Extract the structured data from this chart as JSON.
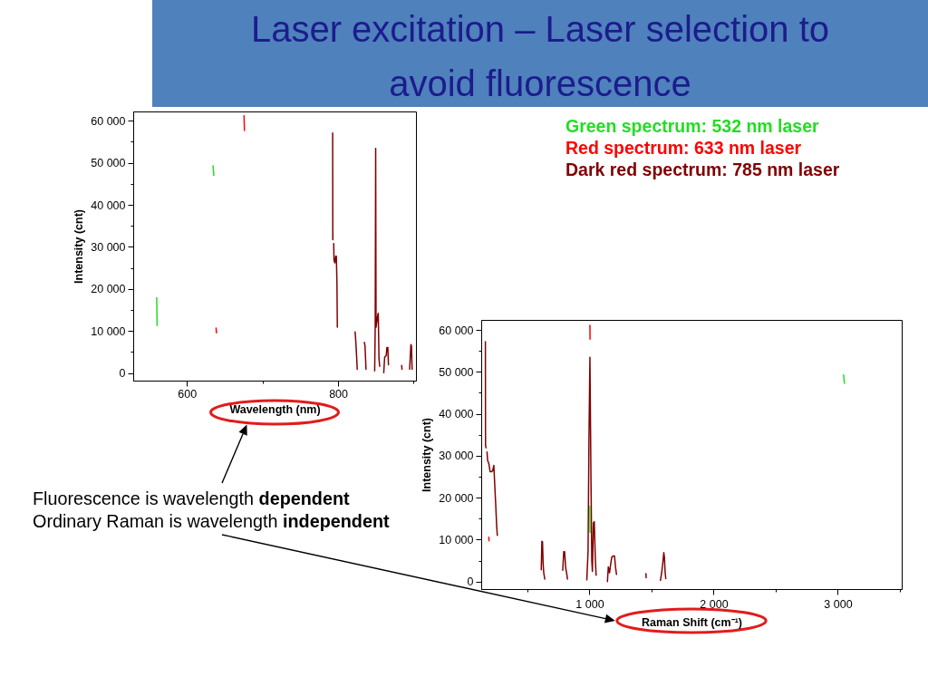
{
  "chart_data": [
    {
      "type": "line",
      "title": "Laser excitation – Laser selection to avoid fluorescence",
      "xlabel": "Wavelength (nm)",
      "ylabel": "Intensity (cnt)",
      "xlim": [
        529,
        903
      ],
      "xticks": [
        600,
        {
          "value": 700,
          "label": null
        },
        800,
        {
          "value": 900,
          "label": null
        }
      ],
      "ylim": [
        -1800,
        62200
      ],
      "yticks": [
        0,
        {
          "value": 5000,
          "label": null
        },
        {
          "value": 10000,
          "label": "10 000"
        },
        {
          "value": 15000,
          "label": null
        },
        {
          "value": 20000,
          "label": "20 000"
        },
        {
          "value": 25000,
          "label": null
        },
        {
          "value": 30000,
          "label": "30 000"
        },
        {
          "value": 35000,
          "label": null
        },
        {
          "value": 40000,
          "label": "40 000"
        },
        {
          "value": 45000,
          "label": null
        },
        {
          "value": 50000,
          "label": "50 000"
        },
        {
          "value": 55000,
          "label": null
        },
        {
          "value": 60000,
          "label": "60 000"
        }
      ],
      "legend": "right",
      "annotations": [
        "Fluorescence is wavelength dependent"
      ],
      "series": [
        {
          "name": "Green spectrum: 532 nm laser",
          "color": "#22dd22",
          "x": [
            559.5,
            560,
            597,
            634,
            635
          ],
          "values": [
            18000,
            11400,
            null,
            49400,
            47100
          ]
        },
        {
          "name": "Red spectrum: 633 nm laser",
          "color": "#ff0000",
          "x": [
            638,
            638.5,
            656,
            675,
            675.5
          ],
          "values": [
            10800,
            9700,
            null,
            61300,
            57800
          ]
        },
        {
          "name": "Dark red spectrum: 785 nm laser",
          "color": "#800000",
          "x": [
            792.2,
            792.4,
            793.0,
            793.6,
            794.0,
            795.1,
            796.2,
            797.1,
            797.9,
            798.4,
            810,
            821.9,
            822.7,
            823.9,
            824.7,
            829,
            834.2,
            835.0,
            835.9,
            836.3,
            842,
            847.8,
            848.5,
            849.1,
            849.6,
            851.5,
            852.5,
            853.5,
            854.4,
            857,
            859.8,
            861.0,
            863.1,
            863.9,
            865.2,
            866.0,
            875,
            883.5,
            883.9,
            889,
            894.0,
            895.7,
            896.5,
            897.3
          ],
          "values": [
            57200,
            31800,
            null,
            30900,
            26900,
            26300,
            27900,
            27900,
            21400,
            11000,
            null,
            9900,
            8000,
            4000,
            1000,
            null,
            7400,
            6500,
            2800,
            1000,
            null,
            600,
            11000,
            53500,
            11000,
            13500,
            14300,
            3500,
            1700,
            null,
            200,
            3900,
            4300,
            6200,
            6200,
            2100,
            null,
            1900,
            1000,
            null,
            1000,
            6900,
            6500,
            1000
          ]
        }
      ]
    },
    {
      "type": "line",
      "xlabel": "Raman Shift (cm⁻¹)",
      "ylabel": "Intensity (cnt)",
      "xlim": [
        128,
        3515
      ],
      "xticks": [
        {
          "value": 500,
          "label": null
        },
        {
          "value": 1000,
          "label": "1 000"
        },
        {
          "value": 1500,
          "label": null
        },
        {
          "value": 2000,
          "label": "2 000"
        },
        {
          "value": 2500,
          "label": null
        },
        {
          "value": 3000,
          "label": "3 000"
        },
        {
          "value": 3500,
          "label": null
        }
      ],
      "ylim": [
        -1800,
        62400
      ],
      "yticks": [
        0,
        {
          "value": 5000,
          "label": null
        },
        {
          "value": 10000,
          "label": "10 000"
        },
        {
          "value": 15000,
          "label": null
        },
        {
          "value": 20000,
          "label": "20 000"
        },
        {
          "value": 25000,
          "label": null
        },
        {
          "value": 30000,
          "label": "30 000"
        },
        {
          "value": 35000,
          "label": null
        },
        {
          "value": 40000,
          "label": "40 000"
        },
        {
          "value": 45000,
          "label": null
        },
        {
          "value": 50000,
          "label": "50 000"
        },
        {
          "value": 55000,
          "label": null
        },
        {
          "value": 60000,
          "label": "60 000"
        }
      ],
      "annotations": [
        "Ordinary Raman is wavelength independent"
      ],
      "series": [
        {
          "color": "#22dd22",
          "x": [
            1000,
            1001,
            2020,
            3043,
            3050
          ],
          "values": [
            18100,
            11800,
            null,
            49400,
            47400
          ]
        },
        {
          "color": "#ff0000",
          "x": [
            186,
            187,
            593,
            1000,
            1001
          ],
          "values": [
            10700,
            9800,
            null,
            61200,
            57900
          ]
        },
        {
          "color": "#800000",
          "x": [
            158,
            159,
            163,
            166,
            171,
            176,
            186,
            196,
            206,
            216,
            226,
            232,
            241,
            249,
            254,
            430,
            608,
            613,
            618,
            623,
            628,
            636,
            710,
            781,
            789,
            796,
            804,
            814,
            819,
            897,
            975,
            985,
            992,
            1000,
            1008,
            1015,
            1020,
            1028,
            1035,
            1043,
            1050,
            1095,
            1141,
            1148,
            1158,
            1166,
            1176,
            1186,
            1198,
            1206,
            1214,
            1333,
            1451,
            1453,
            1510,
            1568,
            1578,
            1588,
            1595,
            1600,
            1606,
            1611
          ],
          "values": [
            57300,
            32600,
            32000,
            null,
            31000,
            29000,
            28200,
            26300,
            26300,
            26500,
            27800,
            24000,
            18500,
            13300,
            11100,
            null,
            2900,
            9700,
            9600,
            4400,
            2200,
            700,
            null,
            2800,
            7200,
            7200,
            3600,
            1800,
            700,
            null,
            500,
            7400,
            33400,
            53600,
            25900,
            5100,
            2500,
            14100,
            14400,
            5900,
            1600,
            null,
            100,
            3600,
            2200,
            4000,
            5900,
            6200,
            6200,
            3600,
            1800,
            null,
            2000,
            1000,
            null,
            400,
            2200,
            4800,
            7000,
            5900,
            2200,
            800
          ]
        }
      ]
    }
  ]
}
